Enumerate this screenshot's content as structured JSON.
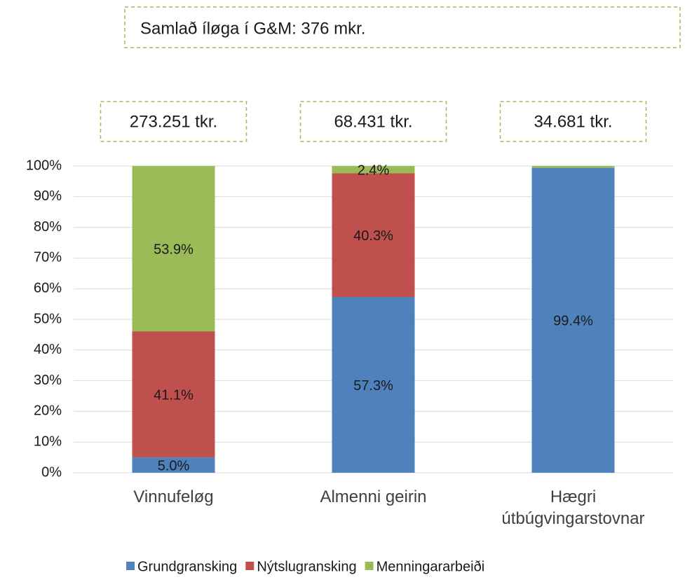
{
  "chart_data": {
    "type": "stacked_bar_percent",
    "title": "Samlað íløga í G&M: 376 mkr.",
    "annotations": [
      "273.251 tkr.",
      "68.431 tkr.",
      "34.681 tkr."
    ],
    "categories": [
      "Vinnufeløg",
      "Almenni geirin",
      "Hægri útbúgvingarstovnar"
    ],
    "series": [
      {
        "name": "Grundgransking",
        "color": "#4f81bd",
        "values": [
          5.0,
          57.3,
          99.4
        ],
        "value_labels": [
          "5.0%",
          "57.3%",
          "99.4%"
        ]
      },
      {
        "name": "Nýtslugransking",
        "color": "#c0504d",
        "values": [
          41.1,
          40.3,
          0
        ],
        "value_labels": [
          "41.1%",
          "40.3%",
          null
        ]
      },
      {
        "name": "Menningararbeiði",
        "color": "#9bbb59",
        "values": [
          53.9,
          2.4,
          0.6
        ],
        "value_labels": [
          "53.9%",
          "2.4%",
          null
        ]
      }
    ],
    "ylim": [
      0,
      100
    ],
    "yticks": [
      {
        "value": 0,
        "label": "0%"
      },
      {
        "value": 10,
        "label": "10%"
      },
      {
        "value": 20,
        "label": "20%"
      },
      {
        "value": 30,
        "label": "30%"
      },
      {
        "value": 40,
        "label": "40%"
      },
      {
        "value": 50,
        "label": "50%"
      },
      {
        "value": 60,
        "label": "60%"
      },
      {
        "value": 70,
        "label": "70%"
      },
      {
        "value": 80,
        "label": "80%"
      },
      {
        "value": 90,
        "label": "90%"
      },
      {
        "value": 100,
        "label": "100%"
      }
    ],
    "grid": true,
    "legend": "bottom"
  }
}
